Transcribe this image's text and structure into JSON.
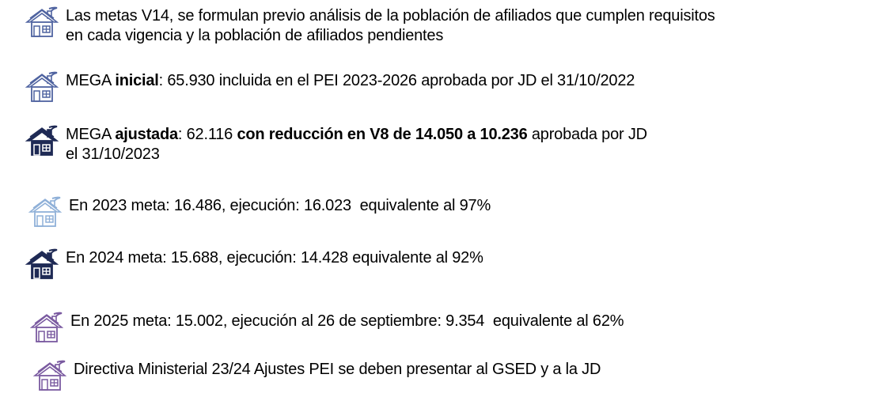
{
  "items": [
    {
      "lines": [
        [
          {
            "text": "Las metas V14, se formulan previo análisis de la población de afiliados que cumplen requisitos"
          }
        ],
        [
          {
            "text": "en cada vigencia y la población de afiliados pendientes"
          }
        ]
      ]
    },
    {
      "lines": [
        [
          {
            "text": "MEGA "
          },
          {
            "text": "inicial",
            "bold": true
          },
          {
            "text": ": 65.930 incluida en el PEI 2023-2026 aprobada por JD el 31/10/2022"
          }
        ]
      ]
    },
    {
      "lines": [
        [
          {
            "text": "MEGA "
          },
          {
            "text": "ajustada",
            "bold": true
          },
          {
            "text": ": 62.116 "
          },
          {
            "text": "con reducción en V8 de 14.050 a 10.236",
            "bold": true
          },
          {
            "text": " aprobada por JD"
          }
        ],
        [
          {
            "text": "el 31/10/2023"
          }
        ]
      ]
    },
    {
      "lines": [
        [
          {
            "text": "En 2023 meta: 16.486, ejecución: 16.023  equivalente al 97%"
          }
        ]
      ]
    },
    {
      "lines": [
        [
          {
            "text": "En 2024 meta: 15.688, ejecución: 14.428 equivalente al 92%"
          }
        ]
      ]
    },
    {
      "lines": [
        [
          {
            "text": "En 2025 meta: 15.002, ejecución al 26 de septiembre: 9.354  equivalente al 62%"
          }
        ]
      ]
    },
    {
      "lines": [
        [
          {
            "text": "Directiva Ministerial 23/24 Ajustes PEI se deben presentar al GSED y a la JD"
          }
        ]
      ]
    }
  ]
}
